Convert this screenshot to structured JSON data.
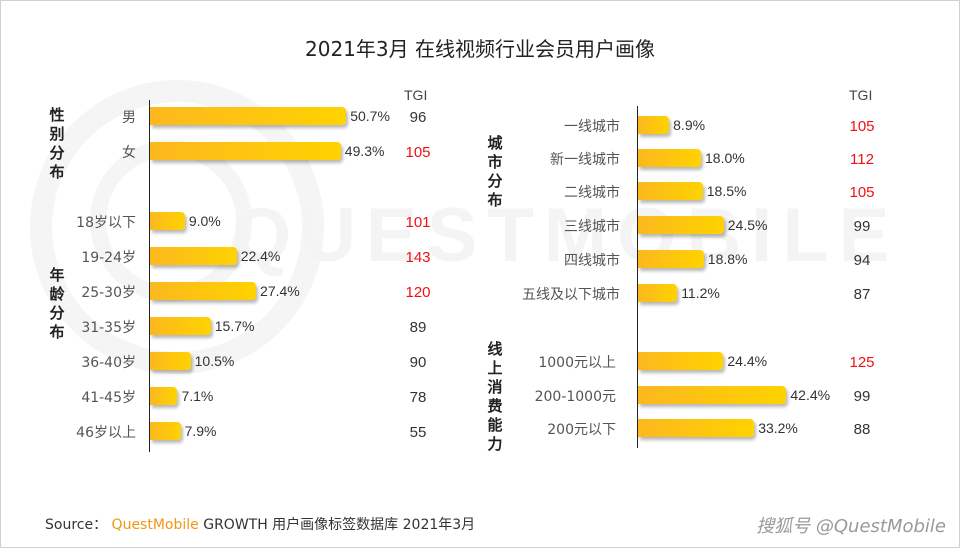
{
  "title": "2021年3月 在线视频行业会员用户画像",
  "watermark": "QUESTMOBILE",
  "tgi_header": "TGI",
  "tgi_highlight_color": "#ee1111",
  "bar_color": "#ffc312",
  "source": {
    "prefix": "Source：",
    "brand": "QuestMobile",
    "text": "GROWTH 用户画像标签数据库 2021年3月"
  },
  "credit": "搜狐号 @QuestMobile",
  "chart_data": [
    {
      "type": "bar",
      "orientation": "horizontal",
      "title": "性别分布",
      "categories": [
        "男",
        "女"
      ],
      "values": [
        50.7,
        49.3
      ],
      "value_labels": [
        "50.7%",
        "49.3%"
      ],
      "tgi": [
        96,
        105
      ],
      "tgi_highlight": [
        false,
        true
      ],
      "unit": "%"
    },
    {
      "type": "bar",
      "orientation": "horizontal",
      "title": "年龄分布",
      "categories": [
        "18岁以下",
        "19-24岁",
        "25-30岁",
        "31-35岁",
        "36-40岁",
        "41-45岁",
        "46岁以上"
      ],
      "values": [
        9.0,
        22.4,
        27.4,
        15.7,
        10.5,
        7.1,
        7.9
      ],
      "value_labels": [
        "9.0%",
        "22.4%",
        "27.4%",
        "15.7%",
        "10.5%",
        "7.1%",
        "7.9%"
      ],
      "tgi": [
        101,
        143,
        120,
        89,
        90,
        78,
        55
      ],
      "tgi_highlight": [
        true,
        true,
        true,
        false,
        false,
        false,
        false
      ],
      "unit": "%"
    },
    {
      "type": "bar",
      "orientation": "horizontal",
      "title": "城市分布",
      "categories": [
        "一线城市",
        "新一线城市",
        "二线城市",
        "三线城市",
        "四线城市",
        "五线及以下城市"
      ],
      "values": [
        8.9,
        18.0,
        18.5,
        24.5,
        18.8,
        11.2
      ],
      "value_labels": [
        "8.9%",
        "18.0%",
        "18.5%",
        "24.5%",
        "18.8%",
        "11.2%"
      ],
      "tgi": [
        105,
        112,
        105,
        99,
        94,
        87
      ],
      "tgi_highlight": [
        true,
        true,
        true,
        false,
        false,
        false
      ],
      "unit": "%"
    },
    {
      "type": "bar",
      "orientation": "horizontal",
      "title": "线上消费能力",
      "categories": [
        "1000元以上",
        "200-1000元",
        "200元以下"
      ],
      "values": [
        24.4,
        42.4,
        33.2
      ],
      "value_labels": [
        "24.4%",
        "42.4%",
        "33.2%"
      ],
      "tgi": [
        125,
        99,
        88
      ],
      "tgi_highlight": [
        true,
        false,
        false
      ],
      "unit": "%"
    }
  ]
}
